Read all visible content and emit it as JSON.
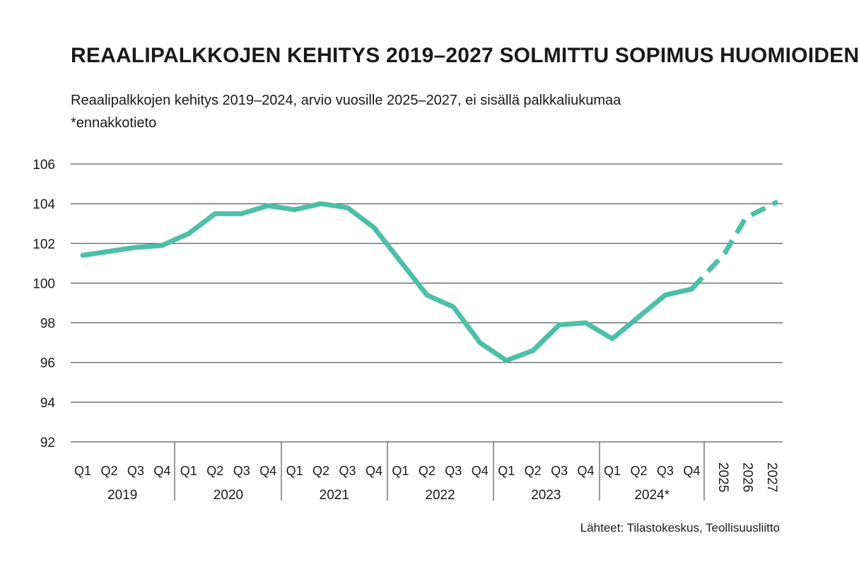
{
  "title": "REAALIPALKKOJEN KEHITYS 2019–2027 SOLMITTU SOPIMUS HUOMIOIDEN",
  "subtitle_line1": "Reaalipalkkojen kehitys 2019–2024, arvio vuosille 2025–2027, ei sisällä palkkaliukumaa",
  "subtitle_line2": "*ennakkotieto",
  "source": "Lähteet: Tilastokeskus, Teollisuusliitto",
  "colors": {
    "line": "#4dbfa8",
    "grid": "#333333",
    "text": "#1a1a1a"
  },
  "chart_data": {
    "type": "line",
    "ylim": [
      92,
      106
    ],
    "yticks": [
      92,
      94,
      96,
      98,
      100,
      102,
      104,
      106
    ],
    "year_groups": [
      {
        "year": "2019",
        "quarters": [
          "Q1",
          "Q2",
          "Q3",
          "Q4"
        ]
      },
      {
        "year": "2020",
        "quarters": [
          "Q1",
          "Q2",
          "Q3",
          "Q4"
        ]
      },
      {
        "year": "2021",
        "quarters": [
          "Q1",
          "Q2",
          "Q3",
          "Q4"
        ]
      },
      {
        "year": "2022",
        "quarters": [
          "Q1",
          "Q2",
          "Q3",
          "Q4"
        ]
      },
      {
        "year": "2023",
        "quarters": [
          "Q1",
          "Q2",
          "Q3",
          "Q4"
        ]
      },
      {
        "year": "2024*",
        "quarters": [
          "Q1",
          "Q2",
          "Q3",
          "Q4"
        ]
      }
    ],
    "forecast_years": [
      "2025",
      "2026",
      "2027"
    ],
    "series": [
      {
        "style": "solid",
        "x": [
          "2019 Q1",
          "2019 Q2",
          "2019 Q3",
          "2019 Q4",
          "2020 Q1",
          "2020 Q2",
          "2020 Q3",
          "2020 Q4",
          "2021 Q1",
          "2021 Q2",
          "2021 Q3",
          "2021 Q4",
          "2022 Q1",
          "2022 Q2",
          "2022 Q3",
          "2022 Q4",
          "2023 Q1",
          "2023 Q2",
          "2023 Q3",
          "2023 Q4",
          "2024 Q1",
          "2024 Q2",
          "2024 Q3",
          "2024 Q4"
        ],
        "values": [
          101.4,
          101.6,
          101.8,
          101.9,
          102.5,
          103.5,
          103.5,
          103.9,
          103.7,
          104.0,
          103.8,
          102.8,
          101.1,
          99.4,
          98.8,
          97.0,
          96.1,
          96.6,
          97.9,
          98.0,
          97.2,
          98.3,
          99.4,
          99.7
        ]
      },
      {
        "style": "dashed",
        "x": [
          "2024 Q4",
          "2025",
          "2026",
          "2027"
        ],
        "values": [
          99.7,
          101.5,
          103.3,
          104.1
        ]
      }
    ]
  }
}
